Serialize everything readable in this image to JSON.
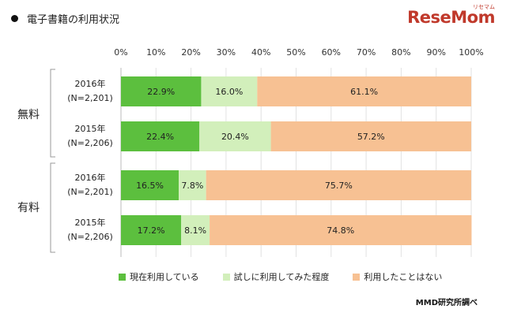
{
  "title": "電子書籍の利用状況",
  "logo": {
    "text": "ReseMom",
    "small": "リセマム"
  },
  "credit": "MMD研究所調べ",
  "chart_data": {
    "type": "bar",
    "orientation": "horizontal",
    "stacked": true,
    "xlim": [
      0,
      100
    ],
    "ticks": [
      "0%",
      "10%",
      "20%",
      "30%",
      "40%",
      "50%",
      "60%",
      "70%",
      "80%",
      "90%",
      "100%"
    ],
    "groups": [
      {
        "name": "無料",
        "rows": [
          {
            "label": "2016年",
            "n": "(N=2,201)",
            "values": [
              22.9,
              16.0,
              61.1
            ],
            "labels": [
              "22.9%",
              "16.0%",
              "61.1%"
            ]
          },
          {
            "label": "2015年",
            "n": "(N=2,206)",
            "values": [
              22.4,
              20.4,
              57.2
            ],
            "labels": [
              "22.4%",
              "20.4%",
              "57.2%"
            ]
          }
        ]
      },
      {
        "name": "有料",
        "rows": [
          {
            "label": "2016年",
            "n": "(N=2,201)",
            "values": [
              16.5,
              7.8,
              75.7
            ],
            "labels": [
              "16.5%",
              "7.8%",
              "75.7%"
            ]
          },
          {
            "label": "2015年",
            "n": "(N=2,206)",
            "values": [
              17.2,
              8.1,
              74.8
            ],
            "labels": [
              "17.2%",
              "8.1%",
              "74.8%"
            ]
          }
        ]
      }
    ],
    "series": [
      {
        "name": "現在利用している",
        "color": "#5cbf3e"
      },
      {
        "name": "試しに利用してみた程度",
        "color": "#d2efbb"
      },
      {
        "name": "利用したことはない",
        "color": "#f7c193"
      }
    ]
  }
}
